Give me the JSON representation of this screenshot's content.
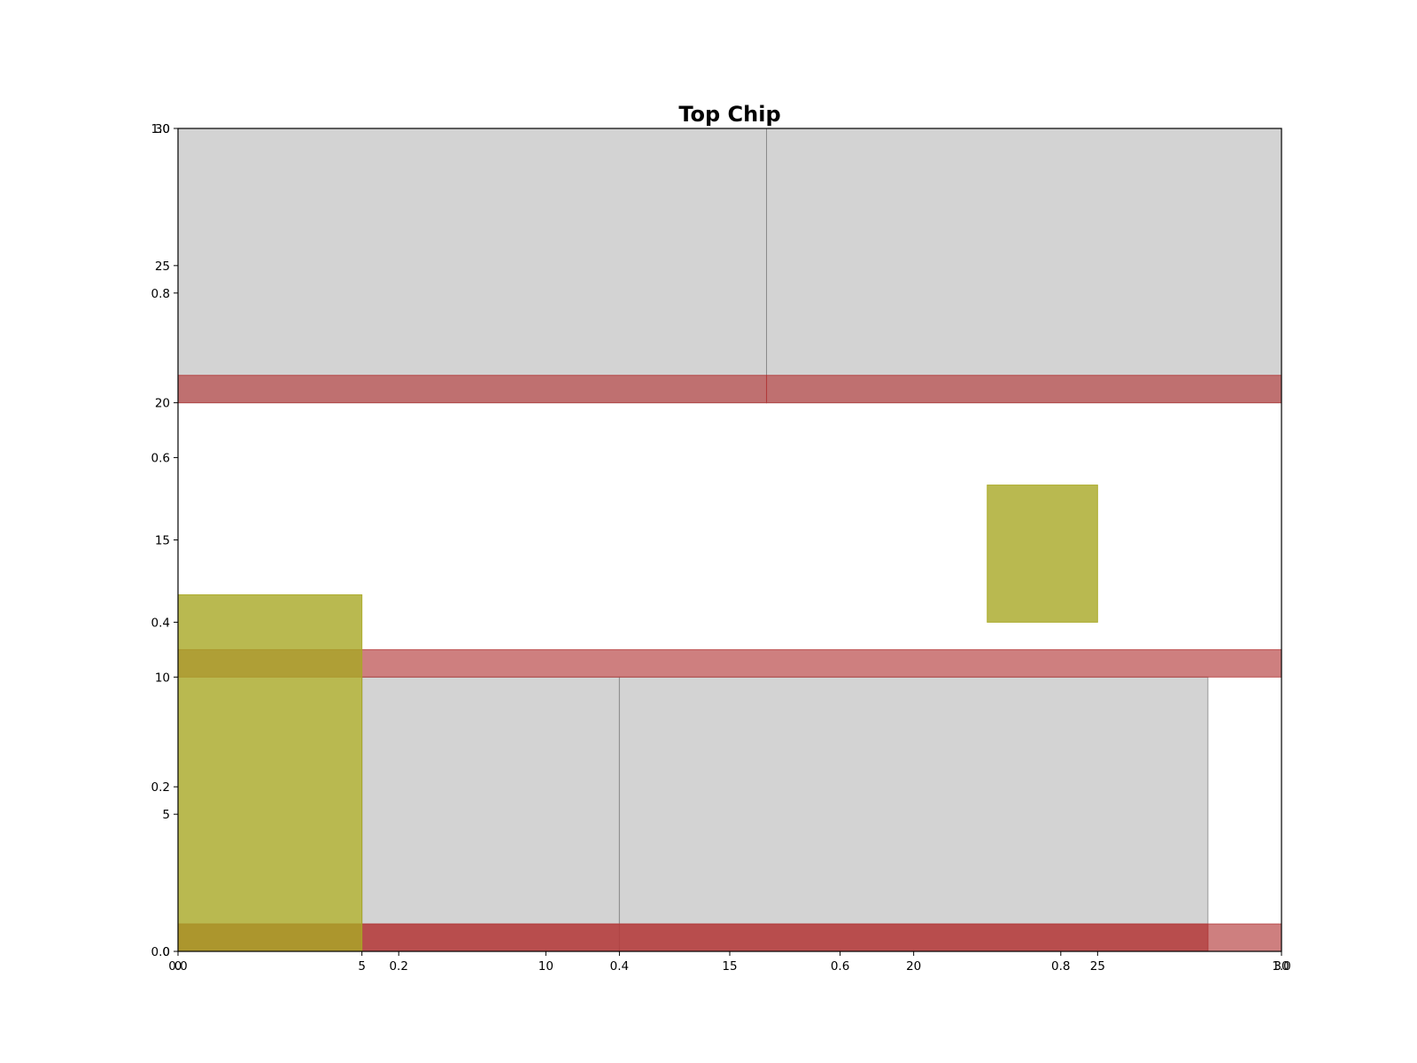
{
  "chart_data": {
    "type": "floorplan",
    "title": "Top Chip",
    "xlabel": "",
    "ylabel": "",
    "xlim": [
      0,
      30
    ],
    "ylim": [
      0,
      30
    ],
    "grid": false,
    "x_ticks": [
      0,
      5,
      10,
      15,
      20,
      25,
      30
    ],
    "y_ticks": [
      0,
      5,
      10,
      15,
      20,
      25,
      30
    ],
    "secondary_axis": {
      "xlim": [
        0,
        1
      ],
      "ylim": [
        0,
        1
      ],
      "x_ticks": [
        "0.0",
        "0.2",
        "0.4",
        "0.6",
        "0.8",
        "1.0"
      ],
      "y_ticks": [
        "0.0",
        "0.2",
        "0.4",
        "0.6",
        "0.8",
        "1.0"
      ]
    },
    "colors": {
      "grey_block": "#d3d3d3",
      "red_band": "#b33a3a",
      "olive_block": "#a8a824",
      "divider": "#777777"
    },
    "rects": [
      {
        "kind": "grey_block",
        "x0": 0,
        "y0": 20,
        "x1": 16,
        "y1": 30
      },
      {
        "kind": "grey_block",
        "x0": 16,
        "y0": 20,
        "x1": 30,
        "y1": 30
      },
      {
        "kind": "grey_block",
        "x0": 5,
        "y0": 0,
        "x1": 12,
        "y1": 10
      },
      {
        "kind": "grey_block",
        "x0": 12,
        "y0": 0,
        "x1": 28,
        "y1": 10
      },
      {
        "kind": "red_band",
        "x0": 0,
        "y0": 20,
        "x1": 16,
        "y1": 21
      },
      {
        "kind": "red_band",
        "x0": 16,
        "y0": 20,
        "x1": 30,
        "y1": 21
      },
      {
        "kind": "red_band",
        "x0": 0,
        "y0": 10,
        "x1": 30,
        "y1": 11
      },
      {
        "kind": "red_band",
        "x0": 0,
        "y0": 0,
        "x1": 30,
        "y1": 1
      },
      {
        "kind": "red_band",
        "x0": 0,
        "y0": 0,
        "x1": 28,
        "y1": 1
      },
      {
        "kind": "olive_block",
        "x0": 0,
        "y0": 0,
        "x1": 5,
        "y1": 13
      },
      {
        "kind": "olive_block",
        "x0": 22,
        "y0": 12,
        "x1": 25,
        "y1": 17
      }
    ]
  }
}
